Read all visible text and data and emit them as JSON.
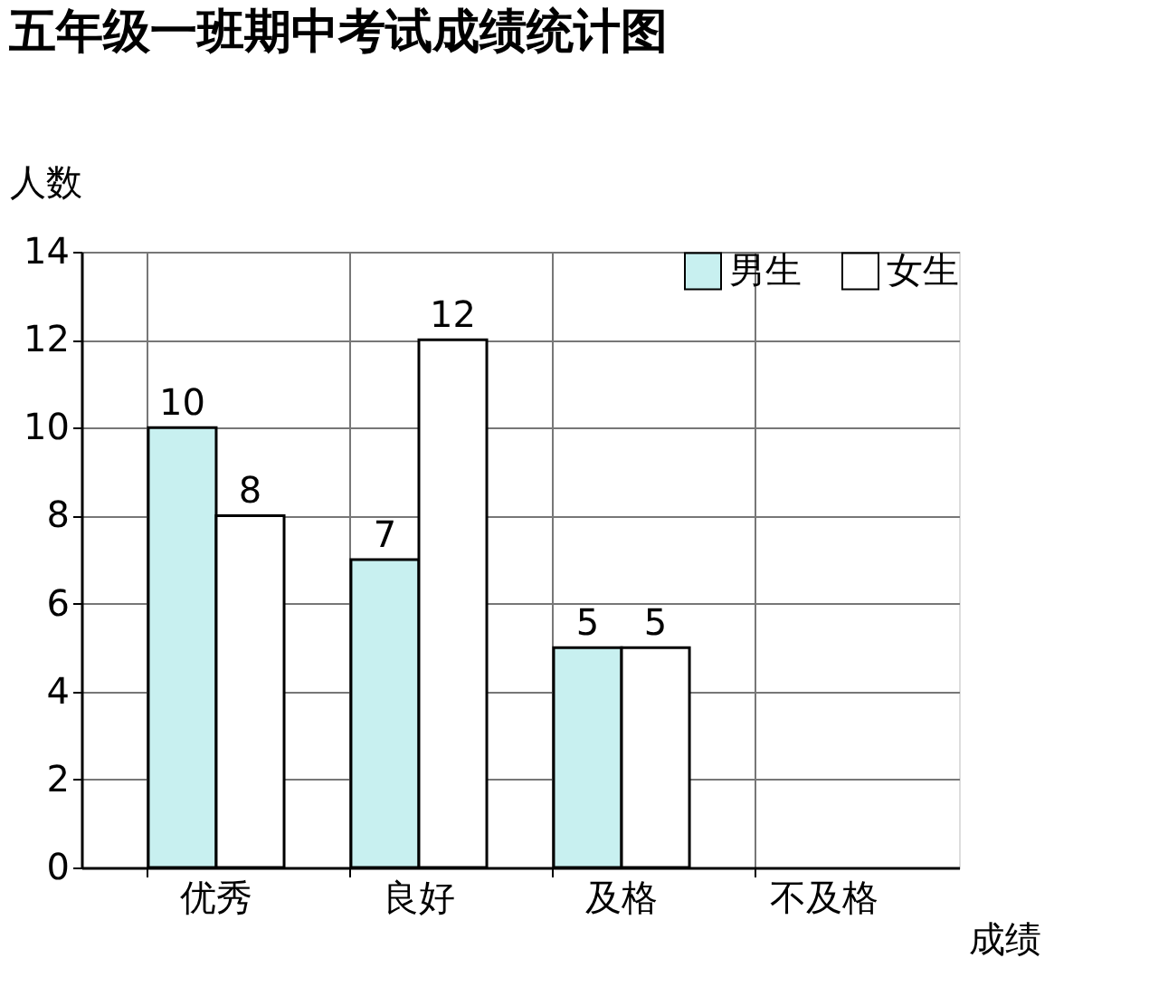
{
  "chart_data": {
    "type": "bar",
    "title": "五年级一班期中考试成绩统计图",
    "xlabel": "成绩",
    "ylabel": "人数",
    "categories": [
      "优秀",
      "良好",
      "及格",
      "不及格"
    ],
    "series": [
      {
        "name": "男生",
        "color": "#c8f0f0",
        "values": [
          10,
          7,
          5,
          null
        ]
      },
      {
        "name": "女生",
        "color": "#ffffff",
        "values": [
          8,
          12,
          5,
          null
        ]
      }
    ],
    "ylim": [
      0,
      14
    ],
    "yticks": [
      0,
      2,
      4,
      6,
      8,
      10,
      12,
      14
    ],
    "grid": true,
    "legend": "top right",
    "data_labels": true
  }
}
